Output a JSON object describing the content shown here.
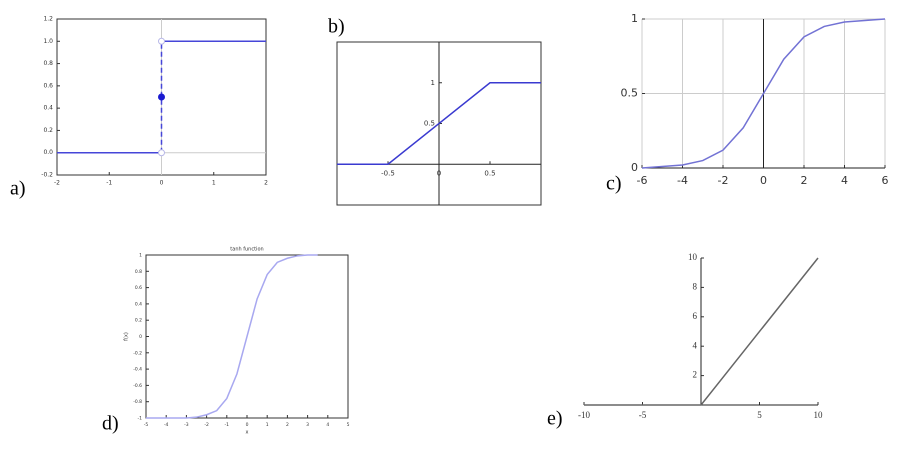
{
  "chart_data": [
    {
      "type": "line",
      "label": "a)",
      "xlim": [
        -2,
        2
      ],
      "ylim": [
        -0.2,
        1.2
      ],
      "xticks": [
        -2,
        -1,
        0,
        1,
        2
      ],
      "yticks": [
        -0.2,
        {
          "value": 0,
          "label": "0.0"
        },
        0.2,
        0.4,
        0.6,
        0.8,
        {
          "value": 1,
          "label": "1.0"
        },
        1.2
      ],
      "series": [
        {
          "color": "#4646d8",
          "x": [
            -2,
            0
          ],
          "values": [
            0,
            0
          ]
        },
        {
          "color": "#4646d8",
          "x": [
            0,
            2
          ],
          "values": [
            1,
            1
          ]
        },
        {
          "color": "#4646d8",
          "x": [
            0,
            0
          ],
          "values": [
            0,
            1
          ],
          "dashed": true
        },
        {
          "color": "#1a1ad0",
          "x": [
            0
          ],
          "values": [
            0.5
          ],
          "marker": "filled"
        },
        {
          "color": "#b8b8e8",
          "x": [
            0,
            0
          ],
          "values": [
            0,
            1
          ],
          "marker": "open"
        }
      ]
    },
    {
      "type": "line",
      "label": "b)",
      "xlim": [
        -1,
        1
      ],
      "ylim": [
        -0.5,
        1.5
      ],
      "xticks": [
        -0.5,
        0,
        0.5
      ],
      "yticks": [
        0.5,
        1
      ],
      "series": [
        {
          "color": "#3a3ad0",
          "x": [
            -1,
            -0.5,
            0.5,
            1
          ],
          "values": [
            0,
            0,
            1,
            1
          ]
        }
      ]
    },
    {
      "type": "line",
      "label": "c)",
      "xlim": [
        -6,
        6
      ],
      "ylim": [
        0,
        1
      ],
      "grid": true,
      "xticks": [
        -6,
        -4,
        -2,
        0,
        2,
        4,
        6
      ],
      "yticks": [
        0,
        0.5,
        1
      ],
      "series": [
        {
          "color": "#7272d4",
          "x": [
            -6,
            -5,
            -4,
            -3,
            -2,
            -1,
            0,
            1,
            2,
            3,
            4,
            5,
            6
          ],
          "values": [
            0.0,
            0.01,
            0.02,
            0.05,
            0.12,
            0.27,
            0.5,
            0.73,
            0.88,
            0.95,
            0.98,
            0.99,
            1.0
          ]
        }
      ]
    },
    {
      "type": "line",
      "label": "d)",
      "title": "tanh function",
      "xlabel": "x",
      "ylabel": "f(x)",
      "xlim": [
        -5,
        5
      ],
      "ylim": [
        -1,
        1
      ],
      "xticks": [
        -5,
        -4,
        -3,
        -2,
        -1,
        0,
        1,
        2,
        3,
        4,
        5
      ],
      "yticks": [
        -1,
        -0.8,
        -0.6,
        -0.4,
        -0.2,
        0,
        0.2,
        0.4,
        0.6,
        0.8,
        1
      ],
      "series": [
        {
          "color": "#a8a8f0",
          "x": [
            -5,
            -4,
            -3,
            -2.5,
            -2,
            -1.5,
            -1,
            -0.5,
            0,
            0.5,
            1,
            1.5,
            2,
            2.5,
            3,
            3.5
          ],
          "values": [
            -1,
            -1,
            -1,
            -0.99,
            -0.96,
            -0.91,
            -0.76,
            -0.46,
            0,
            0.46,
            0.76,
            0.91,
            0.96,
            0.99,
            1,
            1
          ]
        }
      ]
    },
    {
      "type": "line",
      "label": "e)",
      "xlim": [
        -10,
        10
      ],
      "ylim": [
        0,
        10
      ],
      "xticks": [
        -10,
        -5,
        5,
        10
      ],
      "yticks": [
        2,
        4,
        6,
        8,
        10
      ],
      "series": [
        {
          "color": "#666666",
          "x": [
            -10,
            0,
            10
          ],
          "values": [
            0,
            0,
            10
          ]
        }
      ]
    }
  ]
}
